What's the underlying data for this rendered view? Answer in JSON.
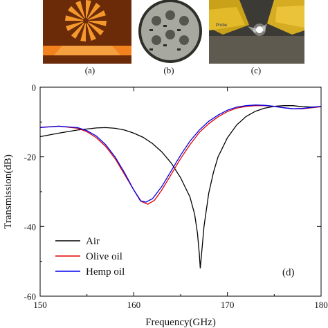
{
  "panels": {
    "a": "(a)",
    "b": "(b)",
    "c": "(c)",
    "d": "(d)"
  },
  "photo_c_text": "Probe",
  "chart_data": {
    "type": "line",
    "xlabel": "Frequency(GHz)",
    "ylabel": "Transmission(dB)",
    "xlim": [
      150,
      180
    ],
    "ylim": [
      -60,
      0
    ],
    "xticks": [
      150,
      160,
      170,
      180
    ],
    "yticks": [
      0,
      -20,
      -40,
      -60
    ],
    "grid": false,
    "legend_position": "bottom-left",
    "series": [
      {
        "name": "Air",
        "color": "#000000",
        "points": [
          [
            150,
            -14.2
          ],
          [
            152,
            -13.2
          ],
          [
            154,
            -12.3
          ],
          [
            156,
            -11.7
          ],
          [
            157,
            -11.6
          ],
          [
            158,
            -11.8
          ],
          [
            159,
            -12.3
          ],
          [
            160,
            -13.2
          ],
          [
            161,
            -14.4
          ],
          [
            162,
            -16.2
          ],
          [
            163,
            -18.6
          ],
          [
            164,
            -21.8
          ],
          [
            165,
            -26.0
          ],
          [
            166,
            -31.5
          ],
          [
            166.5,
            -36.5
          ],
          [
            166.8,
            -42.0
          ],
          [
            167.0,
            -48.0
          ],
          [
            167.1,
            -52.0
          ],
          [
            167.2,
            -49.0
          ],
          [
            167.5,
            -40.0
          ],
          [
            168,
            -30.5
          ],
          [
            168.5,
            -24.5
          ],
          [
            169,
            -20.0
          ],
          [
            170,
            -14.5
          ],
          [
            171,
            -10.8
          ],
          [
            172,
            -8.4
          ],
          [
            173,
            -6.9
          ],
          [
            174,
            -6.0
          ],
          [
            175,
            -5.5
          ],
          [
            176,
            -5.3
          ],
          [
            177,
            -5.3
          ],
          [
            178,
            -5.6
          ],
          [
            179,
            -5.7
          ],
          [
            180,
            -5.6
          ]
        ]
      },
      {
        "name": "Olive oil",
        "color": "#e00000",
        "points": [
          [
            150,
            -11.5
          ],
          [
            152,
            -11.2
          ],
          [
            154,
            -11.8
          ],
          [
            155,
            -12.8
          ],
          [
            156,
            -14.5
          ],
          [
            157,
            -17.0
          ],
          [
            158,
            -20.5
          ],
          [
            159,
            -25.0
          ],
          [
            160,
            -29.5
          ],
          [
            160.8,
            -32.8
          ],
          [
            161.5,
            -33.6
          ],
          [
            162.2,
            -32.5
          ],
          [
            163,
            -29.5
          ],
          [
            164,
            -25.0
          ],
          [
            165,
            -20.5
          ],
          [
            166,
            -16.5
          ],
          [
            167,
            -13.0
          ],
          [
            168,
            -10.5
          ],
          [
            169,
            -8.5
          ],
          [
            170,
            -7.0
          ],
          [
            171,
            -6.0
          ],
          [
            172,
            -5.5
          ],
          [
            173,
            -5.3
          ],
          [
            174,
            -5.3
          ],
          [
            175,
            -5.5
          ],
          [
            176,
            -5.9
          ],
          [
            177,
            -6.2
          ],
          [
            178,
            -6.2
          ],
          [
            179,
            -5.9
          ],
          [
            180,
            -5.6
          ]
        ]
      },
      {
        "name": "Hemp oil",
        "color": "#0000ee",
        "points": [
          [
            150,
            -11.6
          ],
          [
            152,
            -11.2
          ],
          [
            154,
            -11.6
          ],
          [
            155,
            -12.5
          ],
          [
            156,
            -14.0
          ],
          [
            157,
            -16.5
          ],
          [
            158,
            -20.0
          ],
          [
            159,
            -24.5
          ],
          [
            160,
            -29.5
          ],
          [
            160.7,
            -32.6
          ],
          [
            161.3,
            -33.0
          ],
          [
            162,
            -32.0
          ],
          [
            163,
            -28.5
          ],
          [
            164,
            -24.0
          ],
          [
            165,
            -19.5
          ],
          [
            166,
            -15.5
          ],
          [
            167,
            -12.3
          ],
          [
            168,
            -9.8
          ],
          [
            169,
            -8.0
          ],
          [
            170,
            -6.6
          ],
          [
            171,
            -5.7
          ],
          [
            172,
            -5.3
          ],
          [
            173,
            -5.1
          ],
          [
            174,
            -5.2
          ],
          [
            175,
            -5.5
          ],
          [
            176,
            -5.9
          ],
          [
            177,
            -6.2
          ],
          [
            178,
            -6.1
          ],
          [
            179,
            -5.8
          ],
          [
            180,
            -5.5
          ]
        ]
      }
    ]
  }
}
